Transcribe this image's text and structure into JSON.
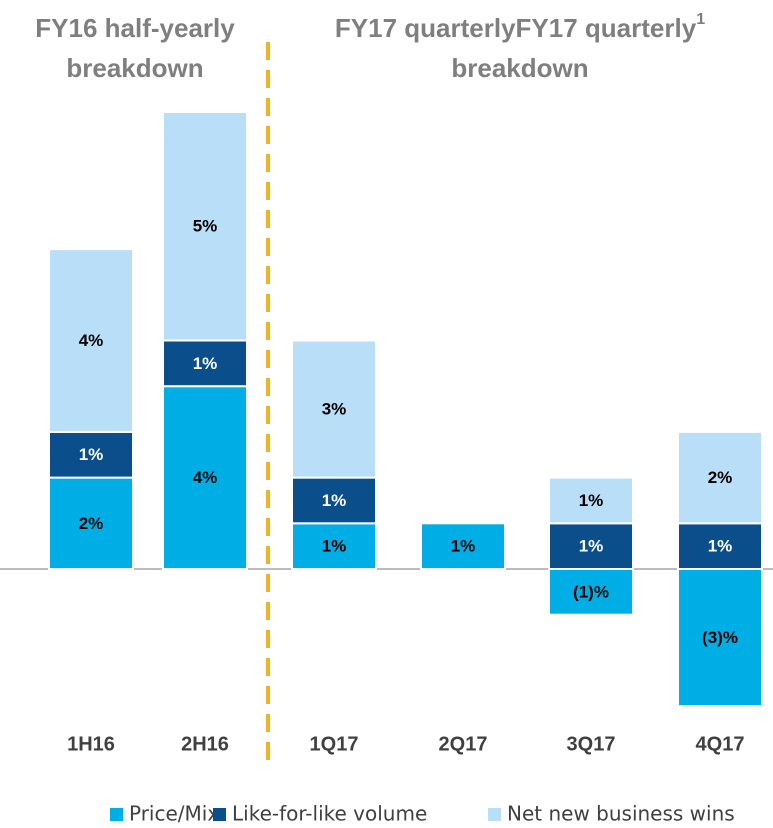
{
  "chart_data": {
    "type": "bar",
    "stacked": true,
    "group_labels": [
      {
        "lines": [
          "FY16 half-yearly",
          "breakdown"
        ]
      },
      {
        "lines": [
          "FY17 quarterly",
          "breakdown"
        ],
        "footnote": "1"
      }
    ],
    "categories": [
      "1H16",
      "2H16",
      "1Q17",
      "2Q17",
      "3Q17",
      "4Q17"
    ],
    "series": [
      {
        "name": "Price/Mix",
        "color": "#00aee6",
        "label_color": "#000000",
        "values": [
          2,
          4,
          1,
          1,
          -1,
          -3
        ],
        "value_labels": [
          "2%",
          "4%",
          "1%",
          "1%",
          "(1)%",
          "(3)%"
        ]
      },
      {
        "name": "Like-for-like volume",
        "color": "#0a4f8c",
        "label_color": "#ffffff",
        "values": [
          1,
          1,
          1,
          null,
          1,
          1
        ],
        "value_labels": [
          "1%",
          "1%",
          "1%",
          null,
          "1%",
          "1%"
        ]
      },
      {
        "name": "Net new business wins",
        "color": "#b9def7",
        "label_color": "#000000",
        "values": [
          4,
          5,
          3,
          null,
          1,
          2
        ],
        "value_labels": [
          "4%",
          "5%",
          "3%",
          null,
          "1%",
          "2%"
        ]
      }
    ],
    "legend": "bottom"
  }
}
